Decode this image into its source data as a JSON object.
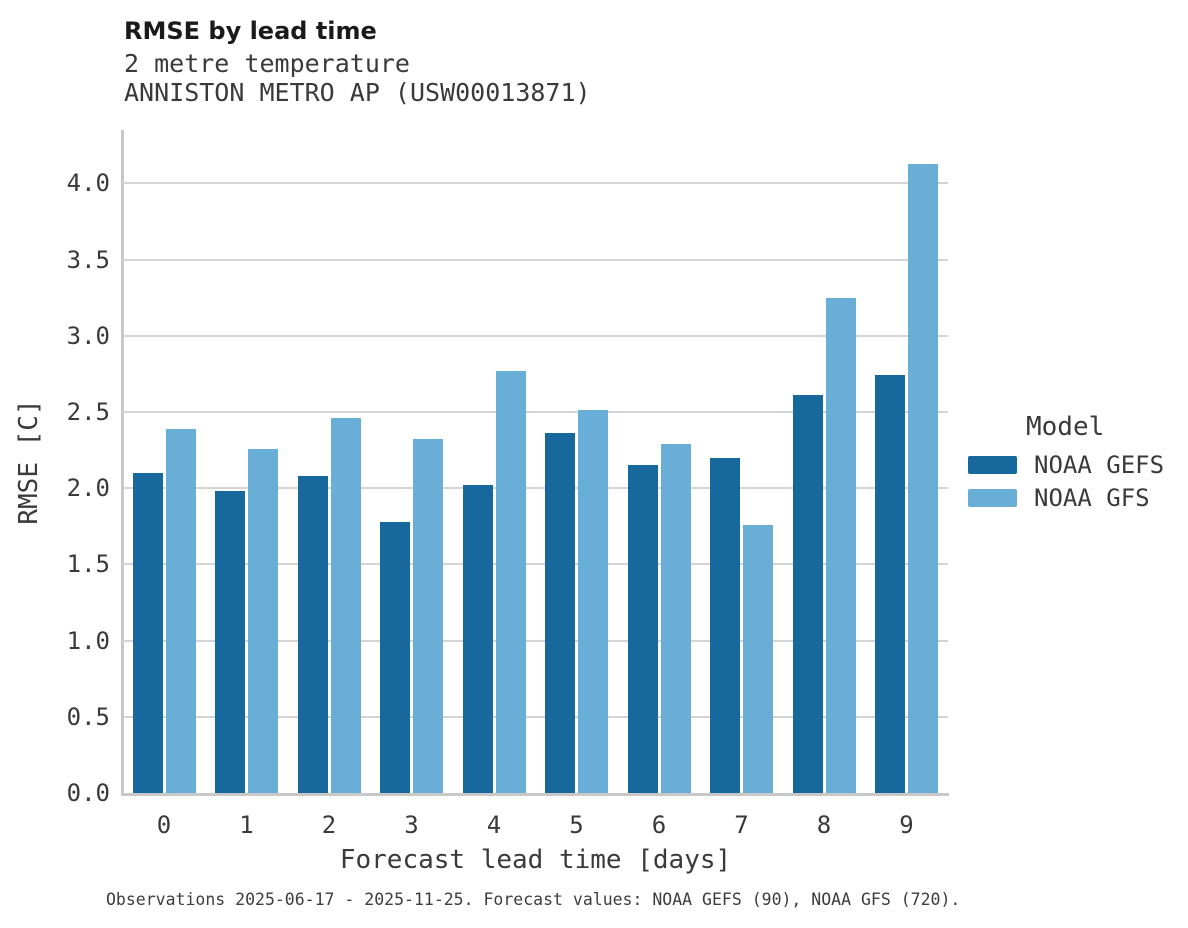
{
  "header": {
    "title": "RMSE by lead time",
    "subtitle1": "2 metre temperature",
    "subtitle2": "ANNISTON METRO AP (USW00013871)"
  },
  "legend": {
    "title": "Model",
    "entries": [
      {
        "label": "NOAA GEFS",
        "color": "#17689C"
      },
      {
        "label": "NOAA GFS",
        "color": "#69AED7"
      }
    ]
  },
  "caption": "Observations 2025-06-17 - 2025-11-25. Forecast values: NOAA GEFS (90), NOAA GFS (720).",
  "colors": {
    "grid": "#d4d4d4",
    "spine": "#c8c8c8",
    "gefs_dark_blue": "#17689C",
    "gfs_light_blue": "#69AED7",
    "title_text": "#1a1a1a",
    "body_text": "#3a3a3a"
  },
  "chart_data": {
    "type": "bar",
    "title": "RMSE by lead time",
    "subtitle": [
      "2 metre temperature",
      "ANNISTON METRO AP (USW00013871)"
    ],
    "categories": [
      0,
      1,
      2,
      3,
      4,
      5,
      6,
      7,
      8,
      9
    ],
    "series": [
      {
        "name": "NOAA GEFS",
        "color": "#17689C",
        "values": [
          2.1,
          1.98,
          2.08,
          1.78,
          2.02,
          2.36,
          2.15,
          2.2,
          2.61,
          2.74
        ]
      },
      {
        "name": "NOAA GFS",
        "color": "#69AED7",
        "values": [
          2.39,
          2.26,
          2.46,
          2.32,
          2.77,
          2.51,
          2.29,
          1.76,
          3.25,
          4.13
        ]
      }
    ],
    "xlabel": "Forecast lead time [days]",
    "ylabel": "RMSE [C]",
    "ylim": [
      0.0,
      4.35
    ],
    "yticks": [
      0.0,
      0.5,
      1.0,
      1.5,
      2.0,
      2.5,
      3.0,
      3.5,
      4.0
    ],
    "grid": true,
    "legend_title": "Model",
    "legend_position": "right of plot"
  }
}
